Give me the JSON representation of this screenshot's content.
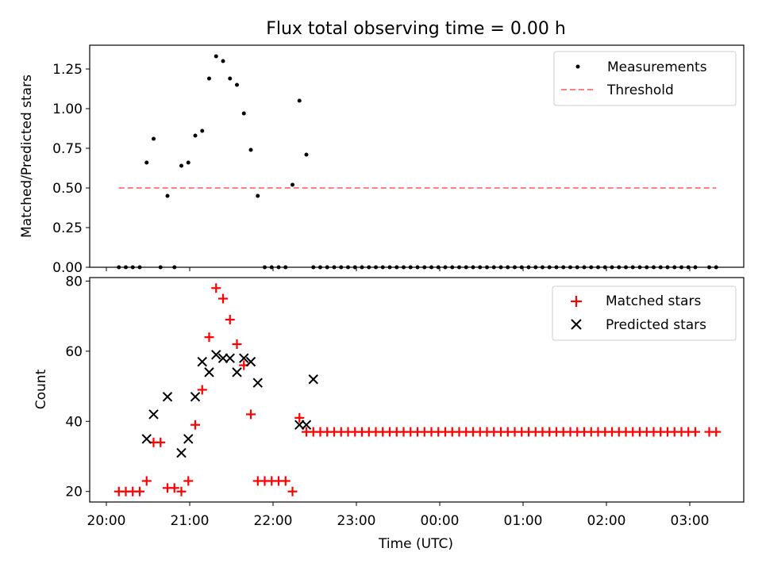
{
  "figure": {
    "title": "Flux total observing time = 0.00 h"
  },
  "chart_data": [
    {
      "type": "scatter",
      "title": "Flux total observing time = 0.00 h",
      "xlabel": "",
      "ylabel": "Matched/Predicted stars",
      "ylim": [
        0,
        1.4
      ],
      "yticks": [
        "0.00",
        "0.25",
        "0.50",
        "0.75",
        "1.00",
        "1.25"
      ],
      "legend": {
        "position": "top-right",
        "entries": [
          "Measurements",
          "Threshold"
        ]
      },
      "series": [
        {
          "name": "Measurements",
          "marker": "dot",
          "color": "#000000",
          "x": [
            "20:09",
            "20:14",
            "20:19",
            "20:24",
            "20:29",
            "20:34",
            "20:39",
            "20:44",
            "20:49",
            "20:54",
            "20:59",
            "21:04",
            "21:09",
            "21:14",
            "21:19",
            "21:24",
            "21:29",
            "21:34",
            "21:39",
            "21:44",
            "21:49",
            "21:54",
            "21:59",
            "22:04",
            "22:09",
            "22:14",
            "22:19",
            "22:24",
            "22:29",
            "22:34",
            "22:39",
            "22:44",
            "22:49",
            "22:54",
            "22:59",
            "23:04",
            "23:09",
            "23:14",
            "23:19",
            "23:24",
            "23:29",
            "23:34",
            "23:39",
            "23:44",
            "23:49",
            "23:54",
            "23:59",
            "00:04",
            "00:09",
            "00:14",
            "00:19",
            "00:24",
            "00:29",
            "00:34",
            "00:39",
            "00:44",
            "00:49",
            "00:54",
            "00:59",
            "01:04",
            "01:09",
            "01:14",
            "01:19",
            "01:24",
            "01:29",
            "01:34",
            "01:39",
            "01:44",
            "01:49",
            "01:54",
            "01:59",
            "02:04",
            "02:09",
            "02:14",
            "02:19",
            "02:24",
            "02:29",
            "02:34",
            "02:39",
            "02:44",
            "02:49",
            "02:54",
            "02:59",
            "03:04",
            "03:14",
            "03:19"
          ],
          "y": [
            0,
            0,
            0,
            0,
            0.66,
            0.81,
            0,
            0.45,
            0,
            0.64,
            0.66,
            0.83,
            0.86,
            1.19,
            1.33,
            1.3,
            1.19,
            1.15,
            0.97,
            0.74,
            0.45,
            0,
            0,
            0,
            0,
            0.52,
            1.05,
            0.71,
            0,
            0,
            0,
            0,
            0,
            0,
            0,
            0,
            0,
            0,
            0,
            0,
            0,
            0,
            0,
            0,
            0,
            0,
            0,
            0,
            0,
            0,
            0,
            0,
            0,
            0,
            0,
            0,
            0,
            0,
            0,
            0,
            0,
            0,
            0,
            0,
            0,
            0,
            0,
            0,
            0,
            0,
            0,
            0,
            0,
            0,
            0,
            0,
            0,
            0,
            0,
            0,
            0,
            0,
            0,
            0,
            0,
            0
          ]
        },
        {
          "name": "Threshold",
          "style": "dashed",
          "color": "#ff7f7f",
          "x": [
            "20:09",
            "03:19"
          ],
          "y": [
            0.5,
            0.5
          ]
        }
      ]
    },
    {
      "type": "scatter",
      "title": "",
      "xlabel": "Time (UTC)",
      "ylabel": "Count",
      "ylim": [
        17,
        81
      ],
      "yticks": [
        "20",
        "40",
        "60",
        "80"
      ],
      "xticks": [
        "20:00",
        "21:00",
        "22:00",
        "23:00",
        "00:00",
        "01:00",
        "02:00",
        "03:00"
      ],
      "legend": {
        "position": "top-right",
        "entries": [
          "Matched stars",
          "Predicted stars"
        ]
      },
      "series": [
        {
          "name": "Matched stars",
          "marker": "plus",
          "color": "#ff0000",
          "x": [
            "20:09",
            "20:14",
            "20:19",
            "20:24",
            "20:29",
            "20:34",
            "20:39",
            "20:44",
            "20:49",
            "20:54",
            "20:59",
            "21:04",
            "21:09",
            "21:14",
            "21:19",
            "21:24",
            "21:29",
            "21:34",
            "21:39",
            "21:44",
            "21:49",
            "21:54",
            "21:59",
            "22:04",
            "22:09",
            "22:14",
            "22:19",
            "22:24",
            "22:29",
            "22:34",
            "22:39",
            "22:44",
            "22:49",
            "22:54",
            "22:59",
            "23:04",
            "23:09",
            "23:14",
            "23:19",
            "23:24",
            "23:29",
            "23:34",
            "23:39",
            "23:44",
            "23:49",
            "23:54",
            "23:59",
            "00:04",
            "00:09",
            "00:14",
            "00:19",
            "00:24",
            "00:29",
            "00:34",
            "00:39",
            "00:44",
            "00:49",
            "00:54",
            "00:59",
            "01:04",
            "01:09",
            "01:14",
            "01:19",
            "01:24",
            "01:29",
            "01:34",
            "01:39",
            "01:44",
            "01:49",
            "01:54",
            "01:59",
            "02:04",
            "02:09",
            "02:14",
            "02:19",
            "02:24",
            "02:29",
            "02:34",
            "02:39",
            "02:44",
            "02:49",
            "02:54",
            "02:59",
            "03:04",
            "03:14",
            "03:19"
          ],
          "y": [
            20,
            20,
            20,
            20,
            23,
            34,
            34,
            21,
            21,
            20,
            23,
            39,
            49,
            64,
            78,
            75,
            69,
            62,
            56,
            42,
            23,
            23,
            23,
            23,
            23,
            20,
            41,
            37,
            37,
            37,
            37,
            37,
            37,
            37,
            37,
            37,
            37,
            37,
            37,
            37,
            37,
            37,
            37,
            37,
            37,
            37,
            37,
            37,
            37,
            37,
            37,
            37,
            37,
            37,
            37,
            37,
            37,
            37,
            37,
            37,
            37,
            37,
            37,
            37,
            37,
            37,
            37,
            37,
            37,
            37,
            37,
            37,
            37,
            37,
            37,
            37,
            37,
            37,
            37,
            37,
            37,
            37,
            37,
            37,
            37,
            37
          ]
        },
        {
          "name": "Predicted stars",
          "marker": "x",
          "color": "#000000",
          "x": [
            "20:29",
            "20:34",
            "20:44",
            "20:54",
            "20:59",
            "21:04",
            "21:09",
            "21:14",
            "21:19",
            "21:24",
            "21:29",
            "21:34",
            "21:39",
            "21:44",
            "21:49",
            "22:19",
            "22:24",
            "22:29"
          ],
          "y": [
            35,
            42,
            47,
            31,
            35,
            47,
            57,
            54,
            59,
            58,
            58,
            54,
            58,
            57,
            51,
            39,
            39,
            52
          ]
        }
      ]
    }
  ]
}
